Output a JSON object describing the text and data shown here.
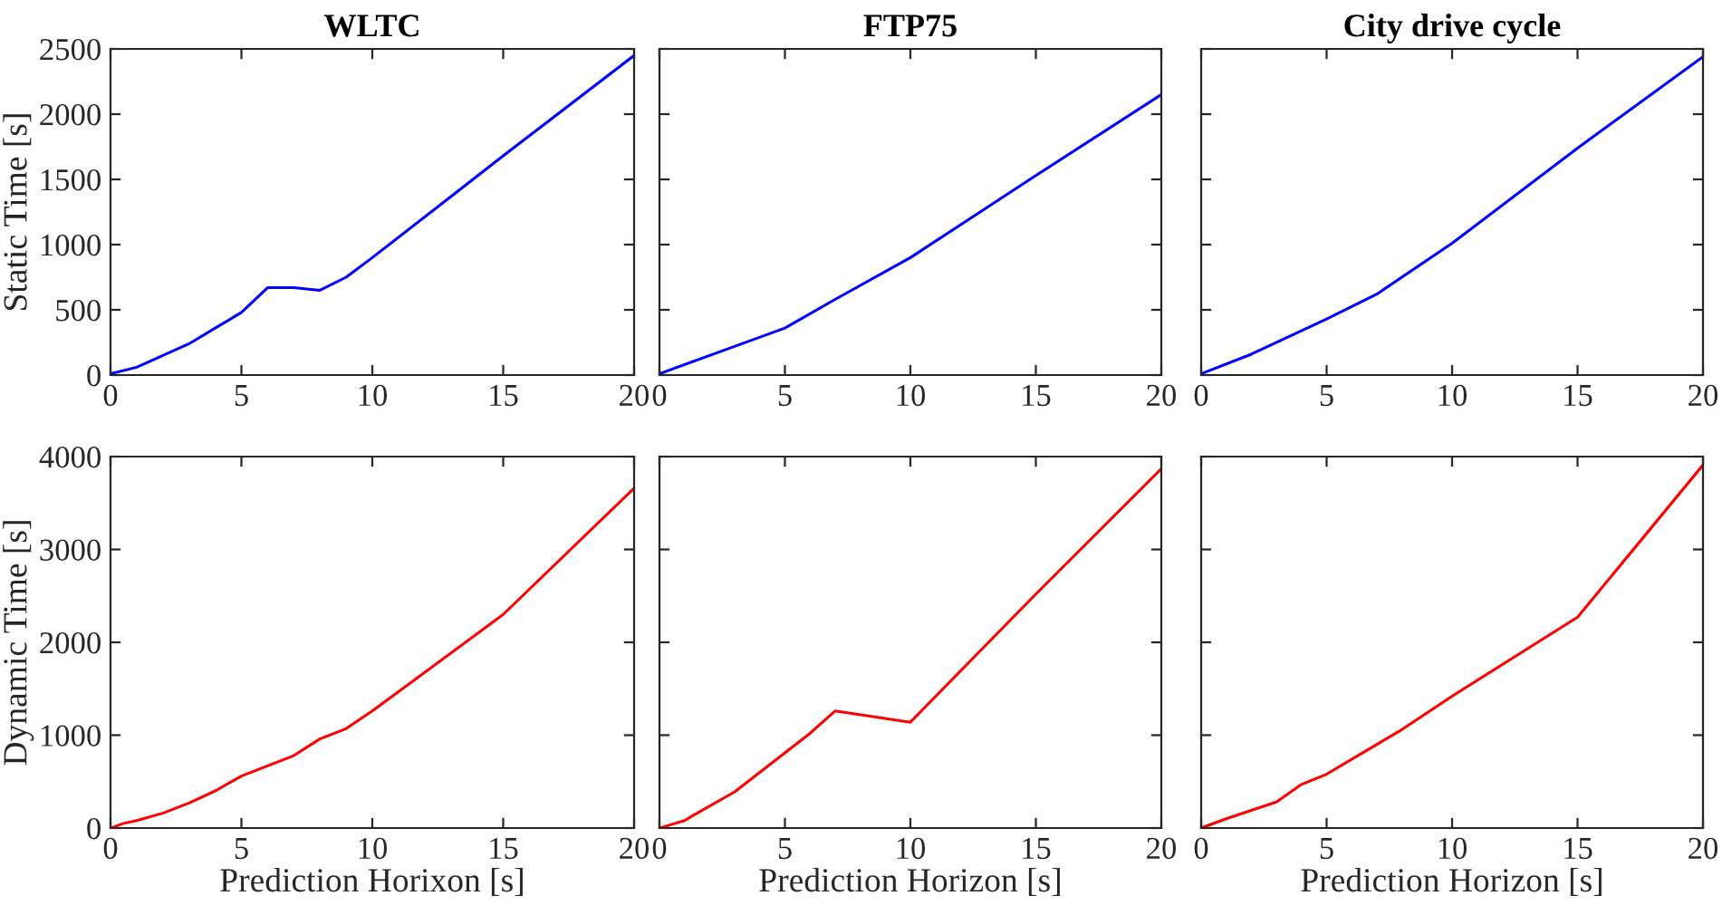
{
  "chart_data": [
    {
      "type": "line",
      "title": "WLTC",
      "ylabel": "Static Time [s]",
      "xlim": [
        0,
        20
      ],
      "xticks": [
        0,
        5,
        10,
        15,
        20
      ],
      "ylim": [
        0,
        2500
      ],
      "yticks": [
        0,
        500,
        1000,
        1500,
        2000,
        2500
      ],
      "grid": false,
      "series": [
        {
          "color": "#0000ff",
          "x": [
            0,
            1,
            2,
            3,
            4,
            5,
            6,
            7,
            8,
            9,
            10,
            15,
            20
          ],
          "values": [
            10,
            60,
            150,
            240,
            360,
            480,
            670,
            670,
            650,
            750,
            900,
            1680,
            2450
          ]
        }
      ]
    },
    {
      "type": "line",
      "title": "FTP75",
      "xlim": [
        0,
        20
      ],
      "xticks": [
        0,
        5,
        10,
        15,
        20
      ],
      "ylim": [
        0,
        2500
      ],
      "yticks": [
        0,
        500,
        1000,
        1500,
        2000,
        2500
      ],
      "grid": false,
      "tick_labels": "x",
      "series": [
        {
          "color": "#0000ff",
          "x": [
            0,
            2,
            5,
            7,
            10,
            15,
            20
          ],
          "values": [
            10,
            150,
            360,
            580,
            900,
            1530,
            2150
          ]
        }
      ]
    },
    {
      "type": "line",
      "title": "City drive cycle",
      "xlim": [
        0,
        20
      ],
      "xticks": [
        0,
        5,
        10,
        15,
        20
      ],
      "ylim": [
        0,
        2500
      ],
      "yticks": [
        0,
        500,
        1000,
        1500,
        2000,
        2500
      ],
      "grid": false,
      "tick_labels": "x",
      "series": [
        {
          "color": "#0000ff",
          "x": [
            0,
            2,
            5,
            7,
            10,
            15,
            20
          ],
          "values": [
            10,
            160,
            430,
            620,
            1010,
            1740,
            2440
          ]
        }
      ]
    },
    {
      "type": "line",
      "xlabel": "Prediction Horixon [s]",
      "ylabel": "Dynamic Time [s]",
      "xlim": [
        0,
        20
      ],
      "xticks": [
        0,
        5,
        10,
        15,
        20
      ],
      "ylim": [
        0,
        4000
      ],
      "yticks": [
        0,
        1000,
        2000,
        3000,
        4000
      ],
      "grid": false,
      "series": [
        {
          "color": "#ff0000",
          "x": [
            0,
            0.5,
            1,
            2,
            3,
            4,
            5,
            6,
            7,
            8,
            9,
            10,
            15,
            20
          ],
          "values": [
            0,
            50,
            80,
            160,
            270,
            400,
            560,
            670,
            780,
            960,
            1070,
            1260,
            2300,
            3660
          ]
        }
      ]
    },
    {
      "type": "line",
      "xlabel": "Prediction Horizon [s]",
      "xlim": [
        0,
        20
      ],
      "xticks": [
        0,
        5,
        10,
        15,
        20
      ],
      "ylim": [
        0,
        4000
      ],
      "yticks": [
        0,
        1000,
        2000,
        3000,
        4000
      ],
      "grid": false,
      "tick_labels": "x",
      "series": [
        {
          "color": "#ff0000",
          "x": [
            0,
            0.5,
            1,
            1.5,
            3,
            4,
            5,
            6,
            7,
            10,
            15,
            20
          ],
          "values": [
            0,
            40,
            80,
            160,
            390,
            600,
            810,
            1020,
            1260,
            1140,
            2520,
            3870
          ]
        }
      ]
    },
    {
      "type": "line",
      "xlabel": "Prediction Horizon [s]",
      "xlim": [
        0,
        20
      ],
      "xticks": [
        0,
        5,
        10,
        15,
        20
      ],
      "ylim": [
        0,
        4000
      ],
      "yticks": [
        0,
        1000,
        2000,
        3000,
        4000
      ],
      "grid": false,
      "tick_labels": "x",
      "series": [
        {
          "color": "#ff0000",
          "x": [
            0,
            1,
            3,
            4,
            5,
            8,
            10,
            15,
            20
          ],
          "values": [
            0,
            100,
            280,
            470,
            580,
            1060,
            1420,
            2270,
            3910
          ]
        }
      ]
    }
  ]
}
